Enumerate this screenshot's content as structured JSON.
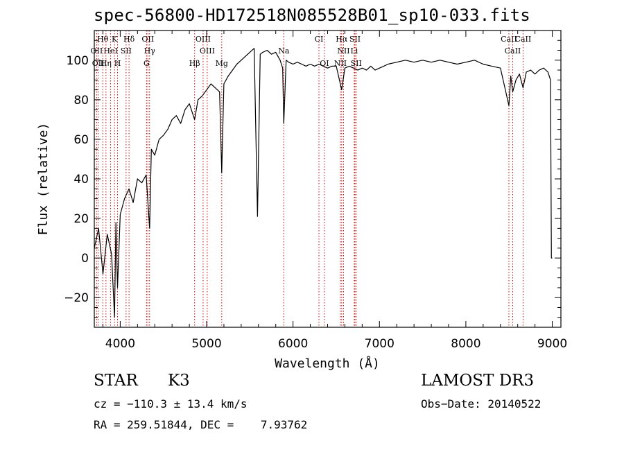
{
  "title": "spec-56800-HD172518N085528B01_sp10-033.fits",
  "chart_data": {
    "type": "line",
    "xlabel": "Wavelength (Å)",
    "ylabel": "Flux (relative)",
    "xlim": [
      3700,
      9100
    ],
    "ylim": [
      -35,
      115
    ],
    "xticks": [
      4000,
      5000,
      6000,
      7000,
      8000,
      9000
    ],
    "yticks": [
      -20,
      0,
      20,
      40,
      60,
      80,
      100
    ],
    "grid": false,
    "series": [
      {
        "name": "spectrum",
        "x": [
          3700,
          3750,
          3800,
          3850,
          3900,
          3934,
          3950,
          3969,
          4000,
          4050,
          4102,
          4150,
          4200,
          4250,
          4300,
          4340,
          4360,
          4400,
          4450,
          4500,
          4550,
          4600,
          4650,
          4700,
          4750,
          4800,
          4861,
          4900,
          4950,
          5000,
          5050,
          5100,
          5150,
          5175,
          5200,
          5250,
          5300,
          5350,
          5400,
          5450,
          5500,
          5550,
          5589,
          5620,
          5650,
          5700,
          5750,
          5800,
          5850,
          5880,
          5893,
          5920,
          5950,
          6000,
          6050,
          6100,
          6150,
          6200,
          6250,
          6300,
          6350,
          6400,
          6450,
          6500,
          6563,
          6600,
          6650,
          6700,
          6750,
          6800,
          6850,
          6900,
          6950,
          7000,
          7050,
          7100,
          7200,
          7300,
          7400,
          7500,
          7600,
          7700,
          7800,
          7900,
          8000,
          8100,
          8200,
          8300,
          8400,
          8498,
          8520,
          8542,
          8580,
          8620,
          8662,
          8700,
          8750,
          8800,
          8850,
          8900,
          8950,
          8980,
          8990,
          9000
        ],
        "y": [
          5,
          15,
          -8,
          12,
          2,
          -30,
          18,
          -15,
          22,
          30,
          35,
          28,
          40,
          38,
          42,
          15,
          55,
          52,
          60,
          62,
          65,
          70,
          72,
          68,
          75,
          78,
          70,
          80,
          82,
          85,
          88,
          86,
          84,
          43,
          88,
          92,
          95,
          98,
          100,
          102,
          104,
          106,
          21,
          103,
          104,
          105,
          103,
          104,
          100,
          96,
          68,
          100,
          99,
          98,
          99,
          98,
          97,
          98,
          97,
          98,
          97,
          96,
          97,
          97,
          85,
          96,
          97,
          96,
          95,
          96,
          95,
          97,
          95,
          96,
          97,
          98,
          99,
          100,
          99,
          100,
          99,
          100,
          99,
          98,
          99,
          100,
          98,
          97,
          96,
          77,
          92,
          84,
          90,
          93,
          86,
          94,
          95,
          93,
          95,
          96,
          94,
          90,
          0,
          0
        ]
      }
    ],
    "line_markers": [
      {
        "label": "Hθ",
        "x": 3798
      },
      {
        "label": "K",
        "x": 3934
      },
      {
        "label": "Hδ",
        "x": 4102
      },
      {
        "label": "OII",
        "x": 4320
      },
      {
        "label": "OIII",
        "x": 4959
      },
      {
        "label": "CI",
        "x": 6300
      },
      {
        "label": "Hα",
        "x": 6563
      },
      {
        "label": "SII",
        "x": 6717
      },
      {
        "label": "CaII",
        "x": 8498
      },
      {
        "label": "OII",
        "x": 3727
      },
      {
        "label": "HeI",
        "x": 3889
      },
      {
        "label": "SII",
        "x": 4068
      },
      {
        "label": "Hγ",
        "x": 4340
      },
      {
        "label": "OIII",
        "x": 5007
      },
      {
        "label": "Na",
        "x": 5893
      },
      {
        "label": "NII",
        "x": 6584
      },
      {
        "label": "Li",
        "x": 6708
      },
      {
        "label": "CaII",
        "x": 8542
      },
      {
        "label": "OII",
        "x": 3745
      },
      {
        "label": "Hη",
        "x": 3835
      },
      {
        "label": "H",
        "x": 3969
      },
      {
        "label": "G",
        "x": 4305
      },
      {
        "label": "Hβ",
        "x": 4861
      },
      {
        "label": "Mg",
        "x": 5175
      },
      {
        "label": "OI",
        "x": 6363
      },
      {
        "label": "NII",
        "x": 6548
      },
      {
        "label": "SII",
        "x": 6731
      },
      {
        "label": "CaII",
        "x": 8662
      }
    ]
  },
  "info": {
    "object_type": "STAR",
    "subclass": "K3",
    "survey": "LAMOST DR3",
    "cz": "cz = −110.3 ± 13.4 km/s",
    "obs_date": "Obs−Date: 20140522",
    "coords": "RA = 259.51844, DEC =    7.93762"
  },
  "colors": {
    "spectrum": "#000000",
    "marker_line": "#cc0000",
    "axis": "#000000"
  }
}
